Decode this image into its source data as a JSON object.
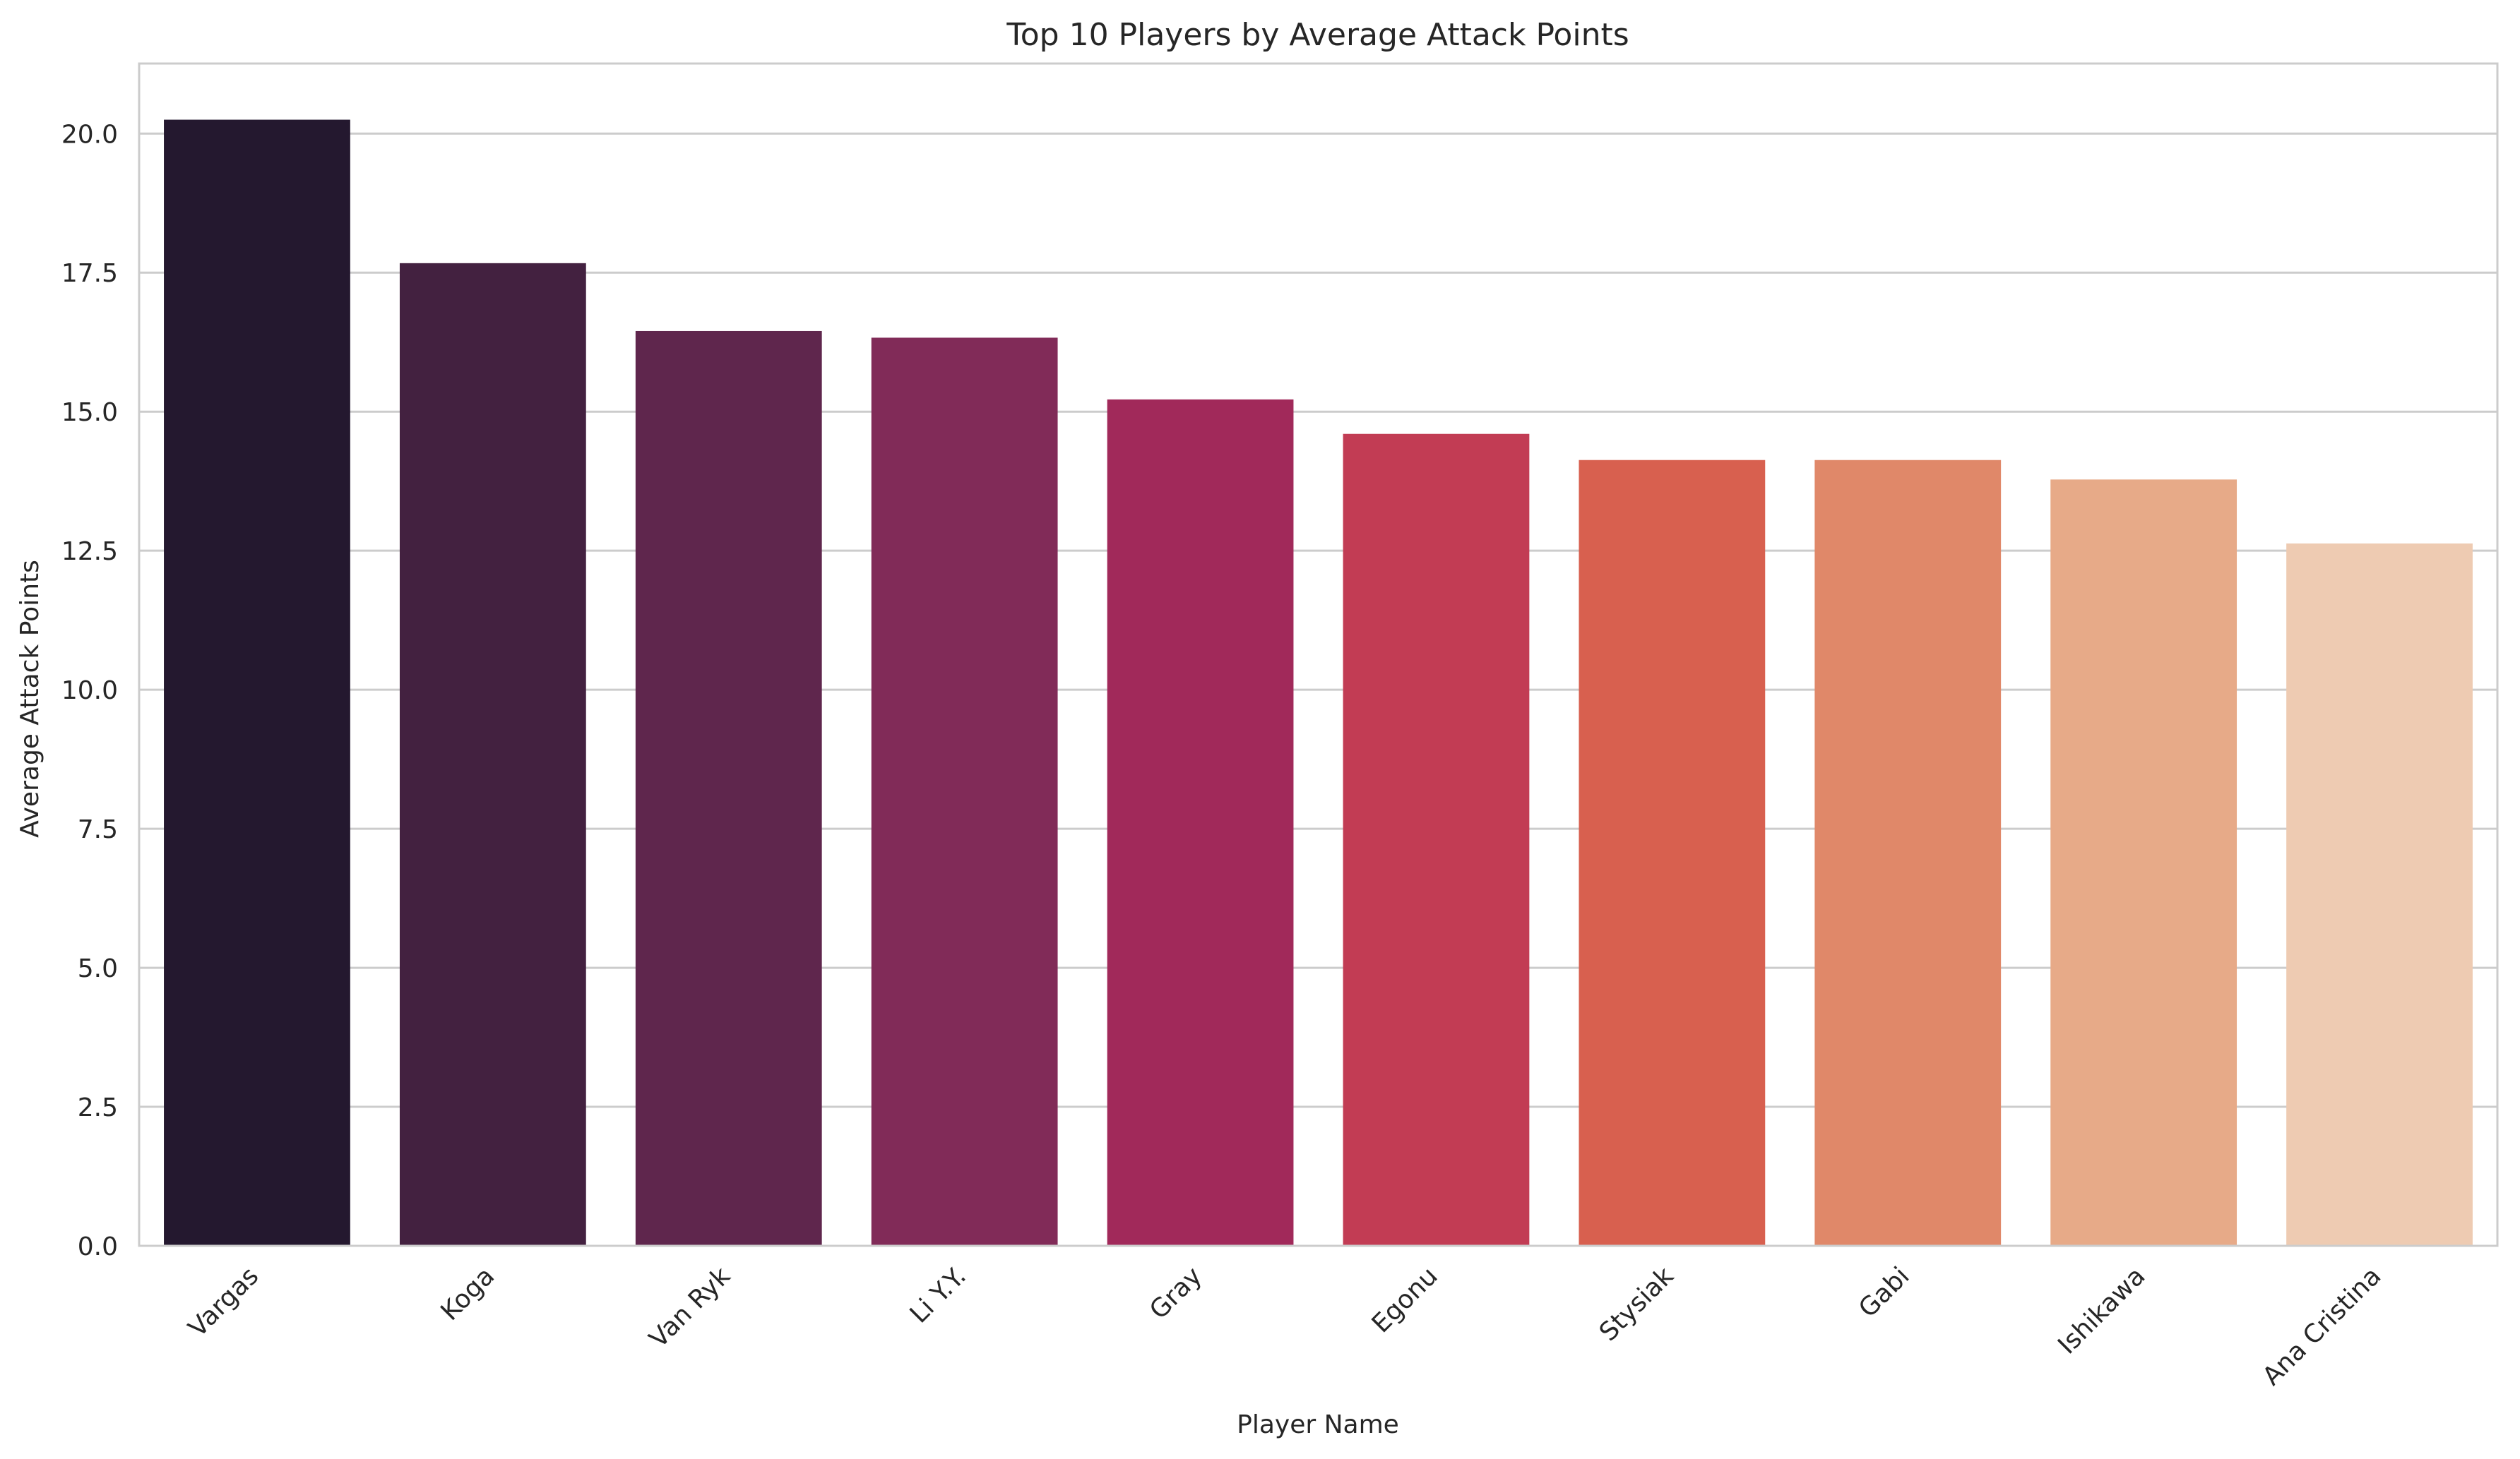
{
  "chart_data": {
    "type": "bar",
    "title": "Top 10 Players by Average Attack Points",
    "xlabel": "Player Name",
    "ylabel": "Average Attack Points",
    "categories": [
      "Vargas",
      "Koga",
      "Van Ryk",
      "Li Y.Y.",
      "Gray",
      "Egonu",
      "Stysiak",
      "Gabi",
      "Ishikawa",
      "Ana Cristina"
    ],
    "values": [
      20.25,
      17.67,
      16.45,
      16.33,
      15.22,
      14.6,
      14.13,
      14.13,
      13.78,
      12.63
    ],
    "colors": [
      "#24182f",
      "#432140",
      "#5f264d",
      "#812b58",
      "#a1295a",
      "#c23c54",
      "#d8604f",
      "#e08869",
      "#e7aa88",
      "#eecbb2"
    ],
    "ylim": [
      0,
      21.26
    ],
    "yticks": [
      "0.0",
      "2.5",
      "5.0",
      "7.5",
      "10.0",
      "12.5",
      "15.0",
      "17.5",
      "20.0"
    ],
    "grid": "horizontal",
    "legend": "none"
  }
}
